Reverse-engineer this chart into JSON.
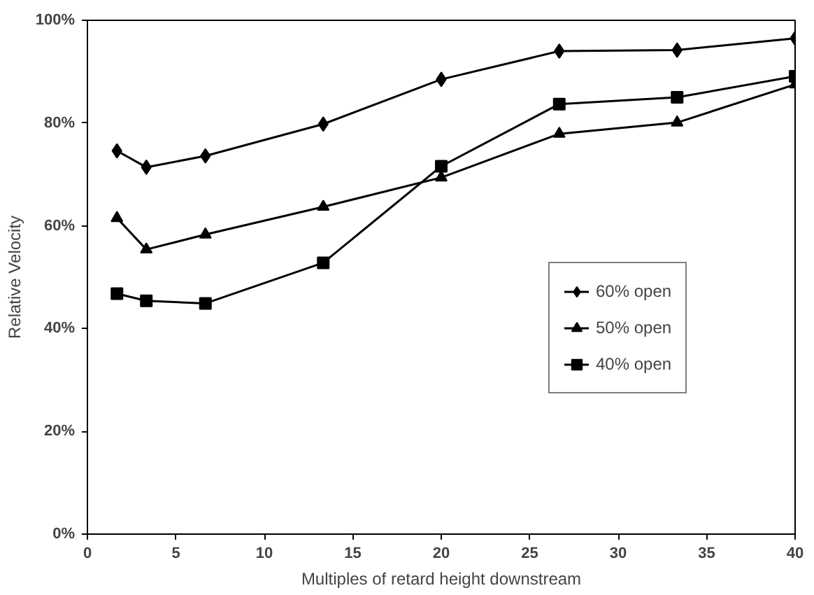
{
  "chart_data": {
    "type": "line",
    "xlabel": "Multiples of retard height downstream",
    "ylabel": "Relative Velocity",
    "x": [
      1.67,
      3.33,
      6.67,
      13.33,
      20,
      26.67,
      33.33,
      40
    ],
    "series": [
      {
        "name": "60% open",
        "color": "#000000",
        "marker": "diamond",
        "values": [
          74.6,
          71.4,
          73.6,
          79.8,
          88.5,
          94.0,
          94.2,
          96.5
        ]
      },
      {
        "name": "50% open",
        "color": "#000000",
        "marker": "triangle",
        "values": [
          61.5,
          55.4,
          58.3,
          63.7,
          69.4,
          77.9,
          80.1,
          87.5
        ]
      },
      {
        "name": "40% open",
        "color": "#000000",
        "marker": "square",
        "values": [
          46.8,
          45.4,
          44.9,
          52.8,
          71.6,
          83.7,
          85.0,
          89.1
        ]
      }
    ],
    "xlim": [
      0,
      40
    ],
    "xticks": [
      0,
      5,
      10,
      15,
      20,
      25,
      30,
      35,
      40
    ],
    "ylim": [
      0,
      100
    ],
    "yticks": [
      {
        "value": 0,
        "label": "0%"
      },
      {
        "value": 20,
        "label": "20%"
      },
      {
        "value": 40,
        "label": "40%"
      },
      {
        "value": 60,
        "label": "60%"
      },
      {
        "value": 80,
        "label": "80%"
      },
      {
        "value": 100,
        "label": "100%"
      }
    ],
    "grid": false,
    "legend": "right",
    "line_style": "solid"
  }
}
